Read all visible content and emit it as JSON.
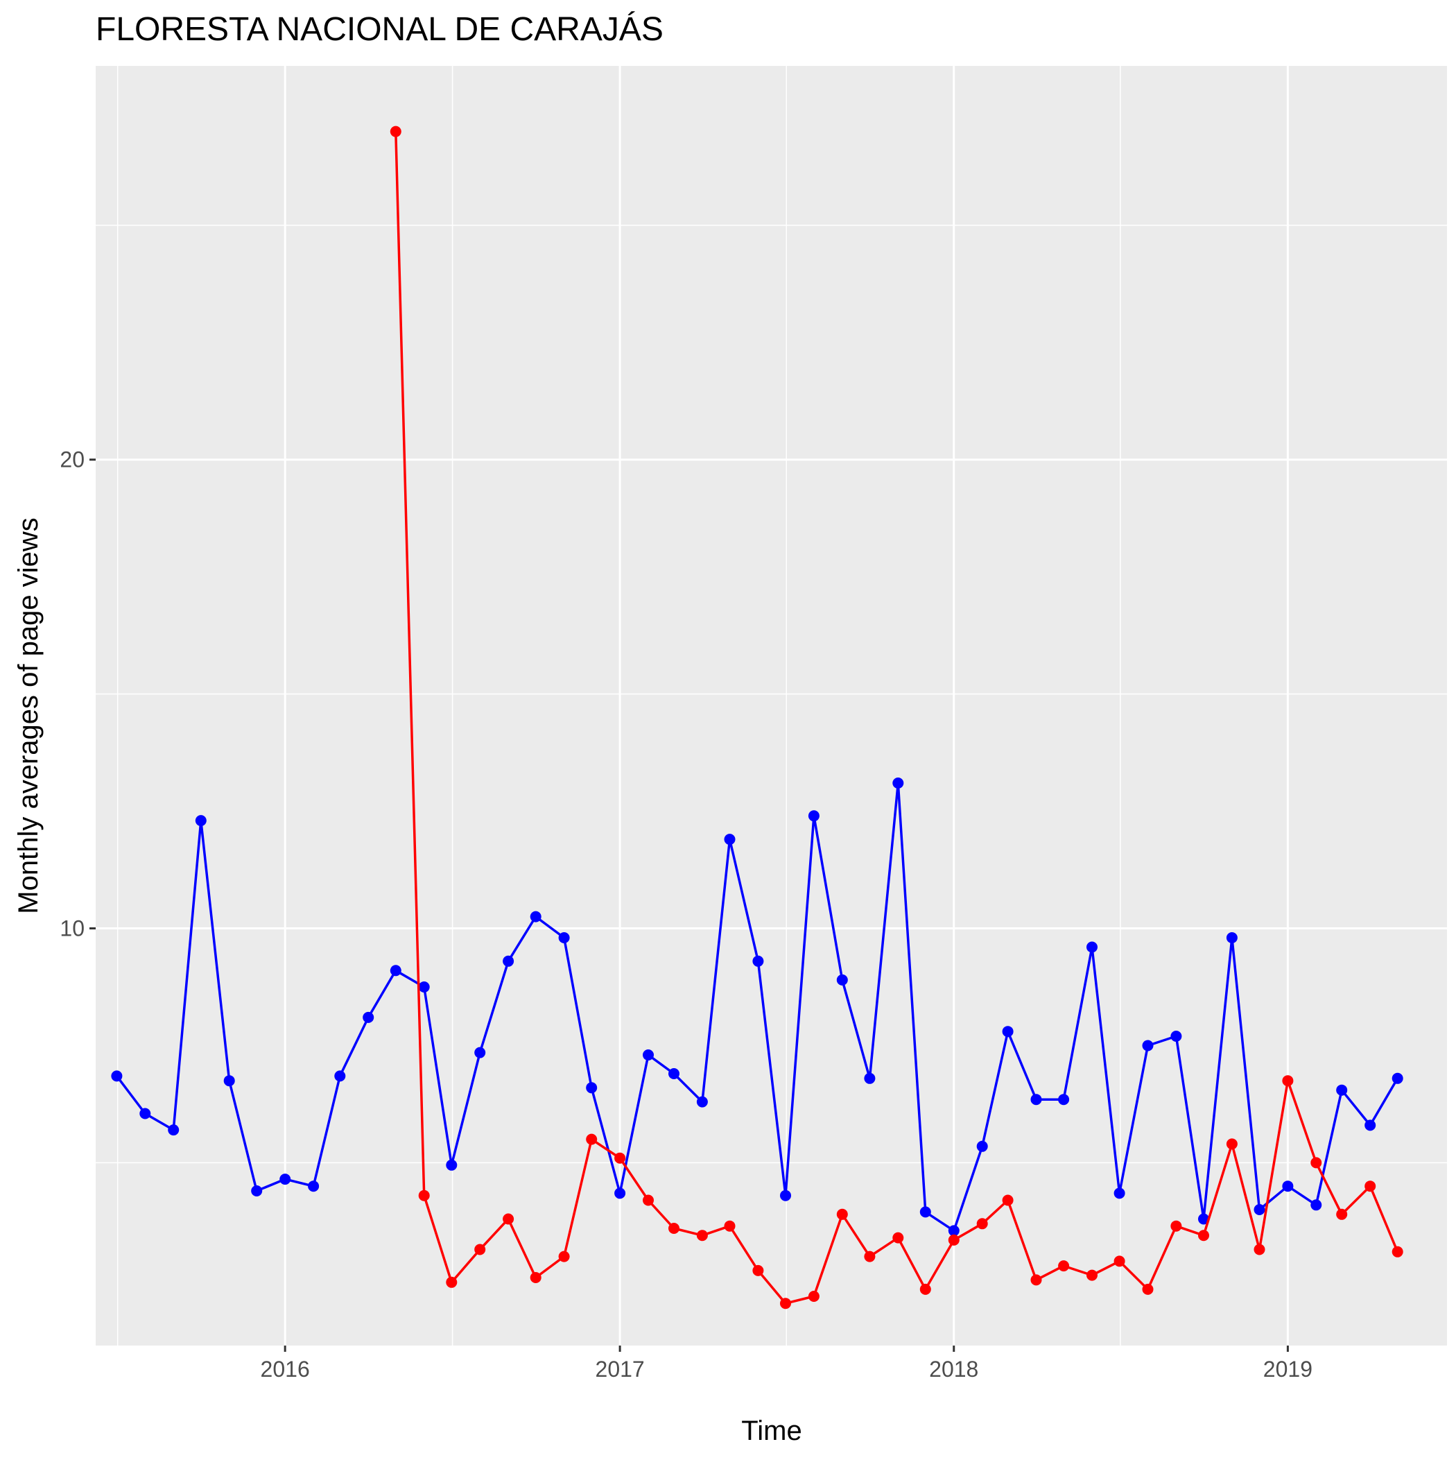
{
  "chart_data": {
    "type": "line",
    "title": "FLORESTA NACIONAL DE CARAJÁS",
    "xlabel": "Time",
    "ylabel": "Monthly averages of page views",
    "x_ticks": [
      "2016",
      "2017",
      "2018",
      "2019"
    ],
    "y_ticks": [
      "10",
      "20"
    ],
    "xlim": [
      "2015-06-08",
      "2019-06-24"
    ],
    "ylim": [
      1.1,
      28.4
    ],
    "grid": true,
    "legend": "none",
    "colors": {
      "panel": "#EBEBEB",
      "grid": "#FFFFFF",
      "series_blue": "#0000FF",
      "series_red": "#FF0000"
    },
    "series": [
      {
        "color": "#0000FF",
        "points": [
          [
            "2015-07-01",
            6.85
          ],
          [
            "2015-08-01",
            6.05
          ],
          [
            "2015-09-01",
            5.7
          ],
          [
            "2015-10-01",
            12.3
          ],
          [
            "2015-11-01",
            6.75
          ],
          [
            "2015-12-01",
            4.4
          ],
          [
            "2016-01-01",
            4.65
          ],
          [
            "2016-02-01",
            4.5
          ],
          [
            "2016-03-01",
            6.85
          ],
          [
            "2016-04-01",
            8.1
          ],
          [
            "2016-05-01",
            9.1
          ],
          [
            "2016-06-01",
            8.75
          ],
          [
            "2016-07-01",
            4.95
          ],
          [
            "2016-08-01",
            7.35
          ],
          [
            "2016-09-01",
            9.3
          ],
          [
            "2016-10-01",
            10.25
          ],
          [
            "2016-11-01",
            9.8
          ],
          [
            "2016-12-01",
            6.6
          ],
          [
            "2017-01-01",
            4.35
          ],
          [
            "2017-02-01",
            7.3
          ],
          [
            "2017-03-01",
            6.9
          ],
          [
            "2017-04-01",
            6.3
          ],
          [
            "2017-05-01",
            11.9
          ],
          [
            "2017-06-01",
            9.3
          ],
          [
            "2017-07-01",
            4.3
          ],
          [
            "2017-08-01",
            12.4
          ],
          [
            "2017-09-01",
            8.9
          ],
          [
            "2017-10-01",
            6.8
          ],
          [
            "2017-11-01",
            13.1
          ],
          [
            "2017-12-01",
            3.95
          ],
          [
            "2018-01-01",
            3.55
          ],
          [
            "2018-02-01",
            5.35
          ],
          [
            "2018-03-01",
            7.8
          ],
          [
            "2018-04-01",
            6.35
          ],
          [
            "2018-05-01",
            6.35
          ],
          [
            "2018-06-01",
            9.6
          ],
          [
            "2018-07-01",
            4.35
          ],
          [
            "2018-08-01",
            7.5
          ],
          [
            "2018-09-01",
            7.7
          ],
          [
            "2018-10-01",
            3.8
          ],
          [
            "2018-11-01",
            9.8
          ],
          [
            "2018-12-01",
            4.0
          ],
          [
            "2019-01-01",
            4.5
          ],
          [
            "2019-02-01",
            4.1
          ],
          [
            "2019-03-01",
            6.55
          ],
          [
            "2019-04-01",
            5.8
          ],
          [
            "2019-05-01",
            6.8
          ]
        ]
      },
      {
        "color": "#FF0000",
        "points": [
          [
            "2016-05-01",
            27.0
          ],
          [
            "2016-06-01",
            4.3
          ],
          [
            "2016-07-01",
            2.45
          ],
          [
            "2016-08-01",
            3.15
          ],
          [
            "2016-09-01",
            3.8
          ],
          [
            "2016-10-01",
            2.55
          ],
          [
            "2016-11-01",
            3.0
          ],
          [
            "2016-12-01",
            5.5
          ],
          [
            "2017-01-01",
            5.1
          ],
          [
            "2017-02-01",
            4.2
          ],
          [
            "2017-03-01",
            3.6
          ],
          [
            "2017-04-01",
            3.45
          ],
          [
            "2017-05-01",
            3.65
          ],
          [
            "2017-06-01",
            2.7
          ],
          [
            "2017-07-01",
            2.0
          ],
          [
            "2017-08-01",
            2.15
          ],
          [
            "2017-09-01",
            3.9
          ],
          [
            "2017-10-01",
            3.0
          ],
          [
            "2017-11-01",
            3.4
          ],
          [
            "2017-12-01",
            2.3
          ],
          [
            "2018-01-01",
            3.35
          ],
          [
            "2018-02-01",
            3.7
          ],
          [
            "2018-03-01",
            4.2
          ],
          [
            "2018-04-01",
            2.5
          ],
          [
            "2018-05-01",
            2.8
          ],
          [
            "2018-06-01",
            2.6
          ],
          [
            "2018-07-01",
            2.9
          ],
          [
            "2018-08-01",
            2.3
          ],
          [
            "2018-09-01",
            3.65
          ],
          [
            "2018-10-01",
            3.45
          ],
          [
            "2018-11-01",
            5.4
          ],
          [
            "2018-12-01",
            3.15
          ],
          [
            "2019-01-01",
            6.75
          ],
          [
            "2019-02-01",
            5.0
          ],
          [
            "2019-03-01",
            3.9
          ],
          [
            "2019-04-01",
            4.5
          ],
          [
            "2019-05-01",
            3.1
          ]
        ]
      }
    ]
  }
}
